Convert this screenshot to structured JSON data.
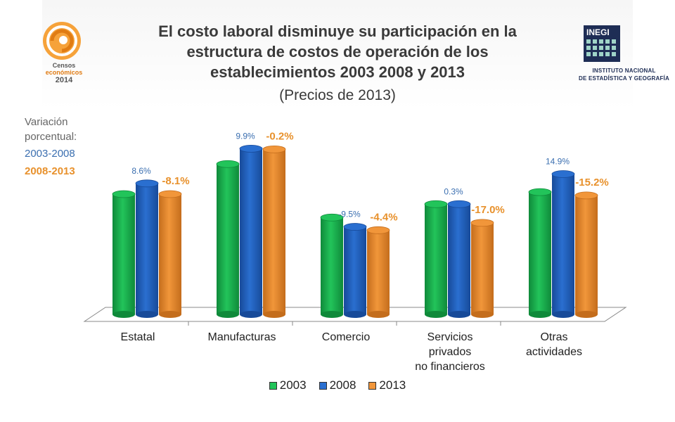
{
  "header": {
    "title_lines": [
      "El costo laboral disminuye su participación en la",
      "estructura de costos de operación de los",
      "establecimientos  2003  2008 y  2013"
    ],
    "subtitle": "(Precios de 2013)"
  },
  "logos": {
    "censos_line1": "Censos",
    "censos_line2": "económicos",
    "censos_year": "2014",
    "inegi_text": "INEGI",
    "inegi_line1": "INSTITUTO NACIONAL",
    "inegi_line2": "DE ESTADÍSTICA Y GEOGRAFÍA"
  },
  "variation_note": {
    "label": "Variación porcentual:",
    "period1": "2003-2008",
    "period2": "2008-2013"
  },
  "colors": {
    "s2003": "#22c45a",
    "s2008": "#2a6fd0",
    "s2013": "#f1963a",
    "label2008": "#3b6fb0",
    "label2013": "#e8912c"
  },
  "chart_data": {
    "type": "bar",
    "categories": [
      "Estatal",
      "Manufacturas",
      "Comercio",
      "Servicios privados no financieros",
      "Otras actividades"
    ],
    "category_label_lines": [
      [
        "Estatal"
      ],
      [
        "Manufacturas"
      ],
      [
        "Comercio"
      ],
      [
        "Servicios",
        "privados",
        "no financieros"
      ],
      [
        "Otras",
        "actividades"
      ]
    ],
    "series": [
      {
        "name": "2003",
        "values": [
          18.0,
          22.5,
          14.5,
          16.5,
          18.3
        ]
      },
      {
        "name": "2008",
        "values": [
          19.6,
          24.8,
          13.1,
          16.5,
          21.0
        ]
      },
      {
        "name": "2013",
        "values": [
          18.0,
          24.7,
          12.6,
          13.7,
          17.8
        ]
      }
    ],
    "variation_2003_2008": [
      "8.6%",
      "9.9%",
      "-9.5%",
      "0.3%",
      "14.9%"
    ],
    "variation_2008_2013": [
      "-8.1%",
      "-0.2%",
      "-4.4%",
      "-17.0%",
      "-15.2%"
    ],
    "ylim": [
      0,
      26
    ],
    "grid": false,
    "legend_position": "bottom"
  }
}
